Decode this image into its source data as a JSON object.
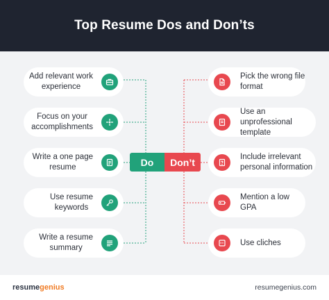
{
  "title": "Top Resume Dos and Don’ts",
  "hub": {
    "do": "Do",
    "dont": "Don’t"
  },
  "dos": [
    {
      "line1": "Add relevant work",
      "line2": "experience",
      "icon": "briefcase-icon"
    },
    {
      "line1": "Focus on your",
      "line2": "accomplishments",
      "icon": "target-icon"
    },
    {
      "line1": "Write a one page",
      "line2": "resume",
      "icon": "document-icon"
    },
    {
      "line1": "Use resume",
      "line2": "keywords",
      "icon": "key-icon"
    },
    {
      "line1": "Write a resume",
      "line2": "summary",
      "icon": "list-icon"
    }
  ],
  "donts": [
    {
      "line1": "Pick the wrong file",
      "line2": "format",
      "icon": "pdf-file-icon"
    },
    {
      "line1": "Use an unprofessional",
      "line2": "template",
      "icon": "template-icon"
    },
    {
      "line1": "Include irrelevant",
      "line2": "personal information",
      "icon": "question-document-icon"
    },
    {
      "line1": "Mention a low GPA",
      "line2": "",
      "icon": "battery-low-icon"
    },
    {
      "line1": "Use cliches",
      "line2": "",
      "icon": "quote-icon"
    }
  ],
  "footer": {
    "brand_part1": "resume",
    "brand_part2": "genius",
    "site": "resumegenius.com"
  },
  "colors": {
    "do": "#21a27a",
    "dont": "#e8484f",
    "header": "#1f2430",
    "brand_accent": "#f07a22"
  }
}
